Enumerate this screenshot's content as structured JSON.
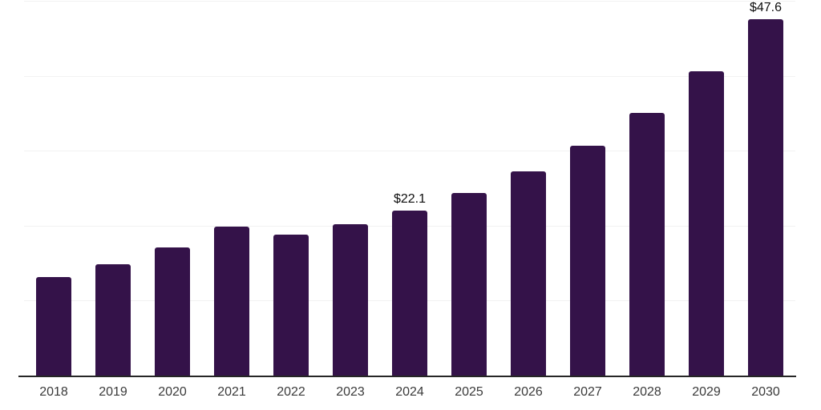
{
  "chart_data": {
    "type": "bar",
    "title": "",
    "xlabel": "",
    "ylabel": "",
    "categories": [
      "2018",
      "2019",
      "2020",
      "2021",
      "2022",
      "2023",
      "2024",
      "2025",
      "2026",
      "2027",
      "2028",
      "2029",
      "2030"
    ],
    "values": [
      13.3,
      15.0,
      17.2,
      20.0,
      18.9,
      20.3,
      22.1,
      24.5,
      27.3,
      30.8,
      35.2,
      40.7,
      47.6
    ],
    "data_labels": [
      "",
      "",
      "",
      "",
      "",
      "",
      "$22.1",
      "",
      "",
      "",
      "",
      "",
      "$47.6"
    ],
    "ylim": [
      0,
      50
    ],
    "gridlines": [
      10,
      20,
      30,
      40,
      50
    ],
    "grid_on": true,
    "legend": "none",
    "colors": {
      "bar": "#341249",
      "axis_line": "#262626",
      "gridline": "#f2f2f2",
      "tick_label": "#3a3a3a",
      "data_label": "#0d0d0d",
      "background": "#ffffff"
    }
  }
}
